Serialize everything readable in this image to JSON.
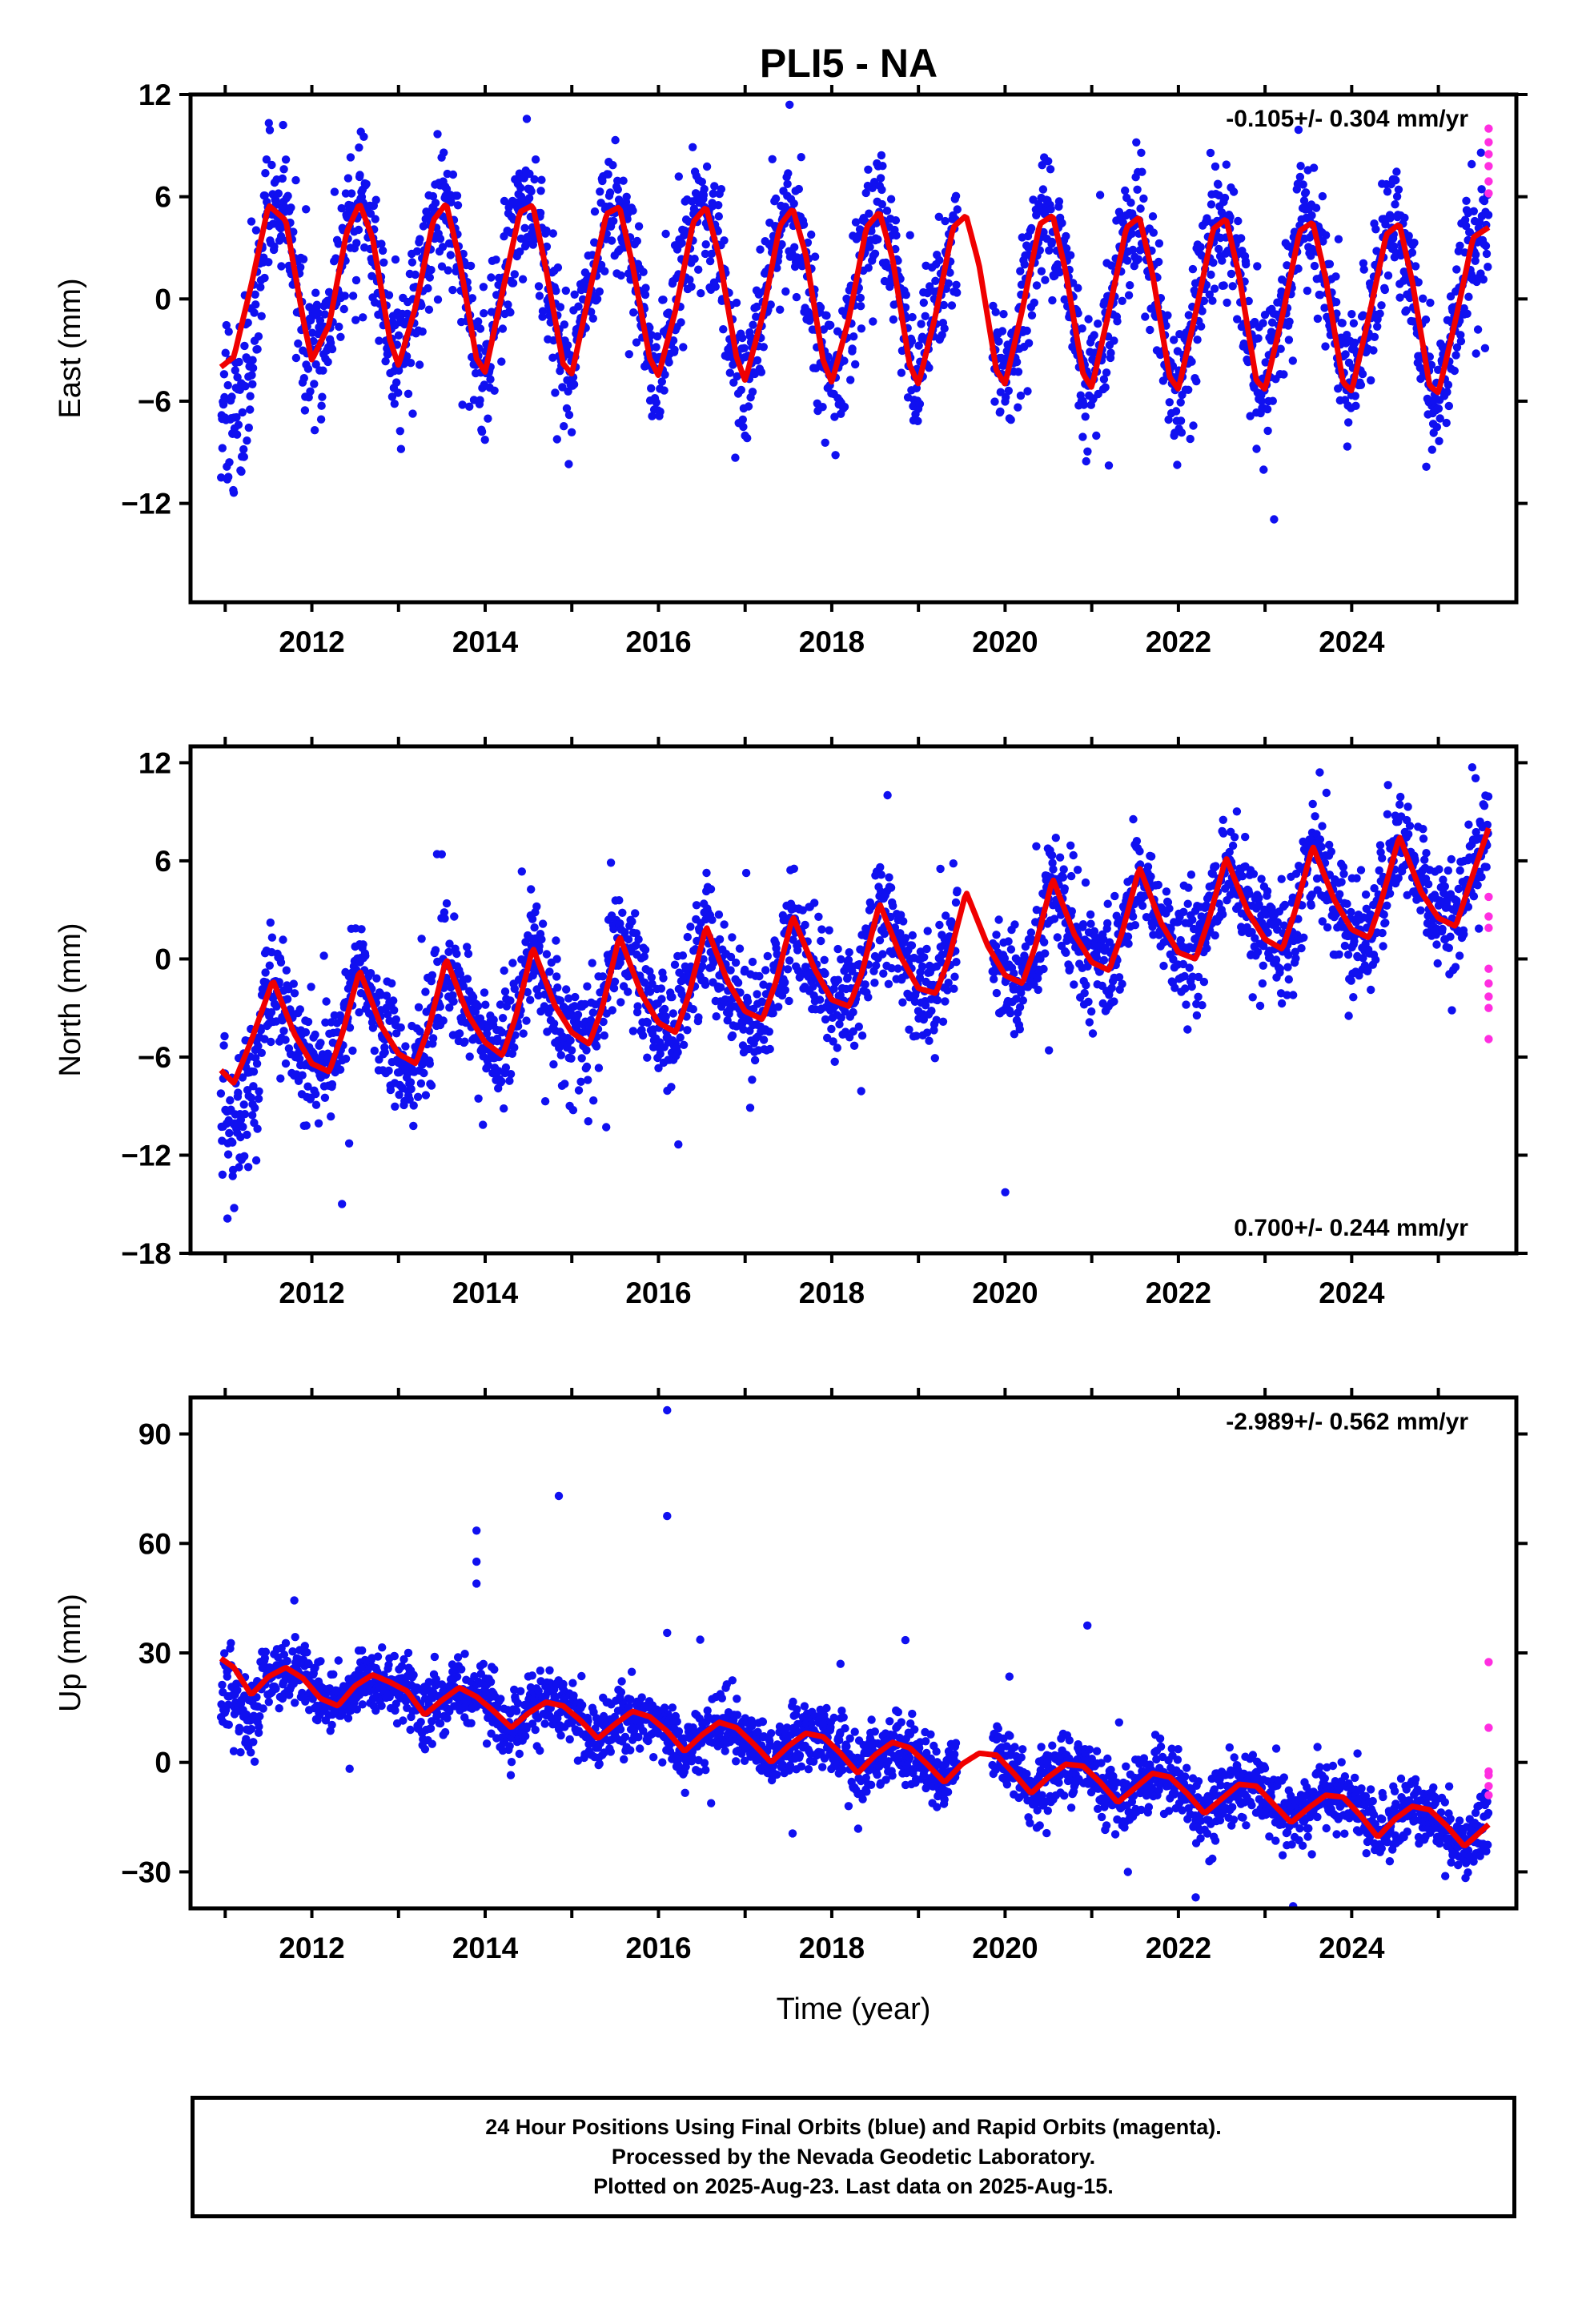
{
  "title": "PLI5 - NA",
  "colors": {
    "final": "#1010f0",
    "rapid": "#ff2ee0",
    "model": "#f00000",
    "axes": "#000000"
  },
  "chart_data": [
    {
      "type": "scatter",
      "component": "east",
      "ylabel": "East (mm)",
      "xlabel": "",
      "xlim": [
        2010.6,
        2025.9
      ],
      "ylim": [
        -17.8,
        12.0
      ],
      "yticks": [
        12,
        6,
        0,
        -6,
        -12
      ],
      "ytick_labels": [
        "12",
        "6",
        "0",
        "−6",
        "−12"
      ],
      "xticks": [
        2012,
        2014,
        2016,
        2018,
        2020,
        2022,
        2024
      ],
      "xtick_labels": [
        "2012",
        "2014",
        "2016",
        "2018",
        "2020",
        "2022",
        "2024"
      ],
      "rate_label": "-0.105+/- 0.304 mm/yr",
      "rate_position": "top-right",
      "series": [
        {
          "name": "Final Orbits",
          "color": "blue",
          "kind": "points",
          "x_range": [
            2010.95,
            2025.58
          ],
          "amplitude_mm": 5.0,
          "trend_mm_per_yr": -0.105,
          "scatter_mm": 1.9
        },
        {
          "name": "Rapid Orbits",
          "color": "magenta",
          "kind": "points",
          "x": [
            2025.58,
            2025.58,
            2025.58,
            2025.58,
            2025.58,
            2025.58
          ],
          "y": [
            10.0,
            9.2,
            8.5,
            7.8,
            6.9,
            6.2
          ]
        },
        {
          "name": "Model",
          "color": "red",
          "kind": "line",
          "x": [
            2010.95,
            2011.1,
            2011.3,
            2011.5,
            2011.7,
            2011.9,
            2012.0,
            2012.2,
            2012.4,
            2012.55,
            2012.7,
            2012.9,
            2013.0,
            2013.2,
            2013.4,
            2013.55,
            2013.7,
            2013.9,
            2014.0,
            2014.2,
            2014.4,
            2014.55,
            2014.7,
            2014.9,
            2015.0,
            2015.2,
            2015.4,
            2015.55,
            2015.7,
            2015.9,
            2016.0,
            2016.2,
            2016.4,
            2016.55,
            2016.7,
            2016.9,
            2017.0,
            2017.2,
            2017.4,
            2017.55,
            2017.7,
            2017.9,
            2018.0,
            2018.2,
            2018.4,
            2018.55,
            2018.7,
            2018.9,
            2019.0,
            2019.2,
            2019.4,
            2019.55,
            2019.7,
            2019.9,
            2020.0,
            2020.2,
            2020.4,
            2020.55,
            2020.7,
            2020.9,
            2021.0,
            2021.2,
            2021.4,
            2021.55,
            2021.7,
            2021.9,
            2022.0,
            2022.2,
            2022.4,
            2022.55,
            2022.7,
            2022.9,
            2023.0,
            2023.2,
            2023.4,
            2023.55,
            2023.7,
            2023.9,
            2024.0,
            2024.2,
            2024.4,
            2024.55,
            2024.7,
            2024.9,
            2025.0,
            2025.2,
            2025.4,
            2025.58
          ],
          "y": [
            -4.0,
            -3.4,
            0.8,
            5.5,
            4.6,
            -1.2,
            -3.6,
            -1.5,
            3.9,
            5.6,
            3.6,
            -2.4,
            -3.9,
            -0.4,
            4.6,
            5.6,
            2.4,
            -3.5,
            -4.3,
            0.4,
            5.1,
            5.5,
            1.8,
            -3.8,
            -4.4,
            0.3,
            5.0,
            5.4,
            2.0,
            -3.5,
            -4.5,
            -0.6,
            4.5,
            5.4,
            2.5,
            -3.4,
            -4.8,
            -1.0,
            4.3,
            5.3,
            2.6,
            -3.6,
            -4.9,
            -1.1,
            4.2,
            5.1,
            2.4,
            -3.9,
            -5.0,
            -0.9,
            4.2,
            4.9,
            2.0,
            -4.2,
            -5.0,
            -0.6,
            4.4,
            4.9,
            1.6,
            -4.4,
            -5.2,
            -0.7,
            4.2,
            4.8,
            1.5,
            -4.6,
            -5.3,
            -0.8,
            4.1,
            4.7,
            1.4,
            -4.8,
            -5.3,
            -1.0,
            4.0,
            4.5,
            1.2,
            -4.9,
            -5.4,
            -1.0,
            3.8,
            4.4,
            1.0,
            -5.1,
            -5.5,
            -1.2,
            3.6,
            4.2
          ]
        }
      ]
    },
    {
      "type": "scatter",
      "component": "north",
      "ylabel": "North (mm)",
      "xlabel": "",
      "xlim": [
        2010.6,
        2025.9
      ],
      "ylim": [
        -18.0,
        13.0
      ],
      "yticks": [
        12,
        6,
        0,
        -6,
        -12,
        -18
      ],
      "ytick_labels": [
        "12",
        "6",
        "0",
        "−6",
        "−12",
        "−18"
      ],
      "xticks": [
        2012,
        2014,
        2016,
        2018,
        2020,
        2022,
        2024
      ],
      "xtick_labels": [
        "2012",
        "2014",
        "2016",
        "2018",
        "2020",
        "2022",
        "2024"
      ],
      "rate_label": "0.700+/- 0.244 mm/yr",
      "rate_position": "bottom-right",
      "series": [
        {
          "name": "Final Orbits",
          "color": "blue",
          "kind": "points",
          "x_range": [
            2010.95,
            2025.58
          ],
          "amplitude_mm": 2.8,
          "trend_mm_per_yr": 0.7,
          "scatter_mm": 1.7
        },
        {
          "name": "Rapid Orbits",
          "color": "magenta",
          "kind": "points",
          "x": [
            2025.58,
            2025.58,
            2025.58,
            2025.58,
            2025.58,
            2025.58,
            2025.58,
            2025.58
          ],
          "y": [
            3.8,
            2.6,
            1.9,
            -0.6,
            -1.5,
            -2.3,
            -3.0,
            -4.9
          ]
        },
        {
          "name": "Model",
          "color": "red",
          "kind": "line",
          "x": [
            2010.95,
            2011.1,
            2011.3,
            2011.55,
            2011.8,
            2012.0,
            2012.2,
            2012.35,
            2012.55,
            2012.8,
            2013.0,
            2013.2,
            2013.35,
            2013.55,
            2013.8,
            2014.0,
            2014.2,
            2014.35,
            2014.55,
            2014.8,
            2015.0,
            2015.2,
            2015.35,
            2015.55,
            2015.8,
            2016.0,
            2016.2,
            2016.35,
            2016.55,
            2016.8,
            2017.0,
            2017.2,
            2017.35,
            2017.55,
            2017.8,
            2018.0,
            2018.2,
            2018.35,
            2018.55,
            2018.8,
            2019.0,
            2019.2,
            2019.35,
            2019.55,
            2019.8,
            2020.0,
            2020.2,
            2020.35,
            2020.55,
            2020.8,
            2021.0,
            2021.2,
            2021.35,
            2021.55,
            2021.8,
            2022.0,
            2022.2,
            2022.35,
            2022.55,
            2022.8,
            2023.0,
            2023.2,
            2023.35,
            2023.55,
            2023.8,
            2024.0,
            2024.2,
            2024.35,
            2024.55,
            2024.8,
            2025.0,
            2025.2,
            2025.35,
            2025.58
          ],
          "y": [
            -6.8,
            -7.6,
            -5.0,
            -1.3,
            -4.6,
            -6.4,
            -6.9,
            -4.6,
            -0.7,
            -4.1,
            -5.8,
            -6.4,
            -4.2,
            0.0,
            -3.4,
            -5.1,
            -5.9,
            -3.6,
            0.7,
            -2.8,
            -4.5,
            -5.2,
            -3.0,
            1.4,
            -2.1,
            -3.9,
            -4.5,
            -2.2,
            2.0,
            -1.4,
            -3.2,
            -3.7,
            -1.5,
            2.6,
            -0.6,
            -2.5,
            -2.9,
            -0.8,
            3.4,
            0.1,
            -1.8,
            -2.1,
            0.0,
            4.1,
            0.8,
            -1.0,
            -1.5,
            0.8,
            4.9,
            1.5,
            -0.2,
            -0.7,
            1.6,
            5.6,
            2.2,
            0.4,
            0.0,
            2.4,
            6.2,
            2.9,
            1.2,
            0.6,
            3.0,
            6.9,
            3.6,
            1.8,
            1.3,
            3.7,
            7.5,
            4.1,
            2.5,
            2.0,
            4.4,
            8.0
          ]
        }
      ]
    },
    {
      "type": "scatter",
      "component": "up",
      "ylabel": "Up (mm)",
      "xlabel": "Time (year)",
      "xlim": [
        2010.6,
        2025.9
      ],
      "ylim": [
        -40.0,
        100.0
      ],
      "yticks": [
        90,
        60,
        30,
        0,
        -30
      ],
      "ytick_labels": [
        "90",
        "60",
        "30",
        "0",
        "−30"
      ],
      "xticks": [
        2012,
        2014,
        2016,
        2018,
        2020,
        2022,
        2024
      ],
      "xtick_labels": [
        "2012",
        "2014",
        "2016",
        "2018",
        "2020",
        "2022",
        "2024"
      ],
      "rate_label": "-2.989+/- 0.562 mm/yr",
      "rate_position": "top-right",
      "series": [
        {
          "name": "Final Orbits",
          "color": "blue",
          "kind": "points",
          "x_range": [
            2010.95,
            2025.58
          ],
          "amplitude_mm": 4.5,
          "trend_mm_per_yr": -2.989,
          "scatter_mm": 4.5,
          "outliers_x": [
            2013.9,
            2013.9,
            2013.9,
            2014.85,
            2016.1,
            2016.1,
            2016.1,
            2020.05,
            2020.95,
            2022.2,
            2018.85,
            2018.1
          ],
          "outliers_y": [
            63.5,
            55.0,
            49.0,
            73.0,
            96.5,
            67.5,
            35.5,
            23.5,
            37.5,
            -37.0,
            33.5,
            27.0
          ]
        },
        {
          "name": "Rapid Orbits",
          "color": "magenta",
          "kind": "points",
          "x": [
            2025.58,
            2025.58,
            2025.58,
            2025.58,
            2025.58,
            2025.58
          ],
          "y": [
            27.5,
            9.5,
            -2.5,
            -3.5,
            -6.5,
            -9.0
          ]
        },
        {
          "name": "Model",
          "color": "red",
          "kind": "line",
          "x": [
            2010.95,
            2011.1,
            2011.3,
            2011.5,
            2011.7,
            2011.9,
            2012.1,
            2012.3,
            2012.5,
            2012.7,
            2012.9,
            2013.1,
            2013.3,
            2013.5,
            2013.7,
            2013.9,
            2014.1,
            2014.3,
            2014.5,
            2014.7,
            2014.9,
            2015.1,
            2015.3,
            2015.5,
            2015.7,
            2015.9,
            2016.1,
            2016.3,
            2016.5,
            2016.7,
            2016.9,
            2017.1,
            2017.3,
            2017.5,
            2017.7,
            2017.9,
            2018.1,
            2018.3,
            2018.5,
            2018.7,
            2018.9,
            2019.1,
            2019.3,
            2019.5,
            2019.7,
            2019.9,
            2020.1,
            2020.3,
            2020.5,
            2020.7,
            2020.9,
            2021.1,
            2021.3,
            2021.5,
            2021.7,
            2021.9,
            2022.1,
            2022.3,
            2022.5,
            2022.7,
            2022.9,
            2023.1,
            2023.3,
            2023.5,
            2023.7,
            2023.9,
            2024.1,
            2024.3,
            2024.5,
            2024.7,
            2024.9,
            2025.1,
            2025.3,
            2025.58
          ],
          "y": [
            28.5,
            26.0,
            18.5,
            23.5,
            26.0,
            23.0,
            17.5,
            15.5,
            21.0,
            24.0,
            22.0,
            19.5,
            13.0,
            17.0,
            20.5,
            18.0,
            14.0,
            9.5,
            13.5,
            16.5,
            15.5,
            11.5,
            6.5,
            10.5,
            14.0,
            12.5,
            8.5,
            3.0,
            7.5,
            11.0,
            9.5,
            5.0,
            0.0,
            4.5,
            8.0,
            7.0,
            2.5,
            -3.0,
            2.0,
            5.5,
            4.0,
            -0.5,
            -5.5,
            -0.5,
            2.5,
            2.0,
            -3.0,
            -8.5,
            -4.0,
            -0.5,
            -1.0,
            -5.5,
            -11.0,
            -7.0,
            -3.0,
            -4.0,
            -8.5,
            -14.0,
            -10.0,
            -6.0,
            -6.5,
            -11.5,
            -16.5,
            -12.5,
            -9.0,
            -9.5,
            -14.5,
            -20.5,
            -15.5,
            -12.0,
            -13.0,
            -17.5,
            -23.0,
            -17.0
          ]
        }
      ]
    }
  ],
  "footer": {
    "line1": "24 Hour Positions Using Final Orbits (blue) and Rapid Orbits (magenta).",
    "line2": "Processed by the Nevada Geodetic Laboratory.",
    "line3": "Plotted on 2025-Aug-23. Last data on 2025-Aug-15."
  }
}
